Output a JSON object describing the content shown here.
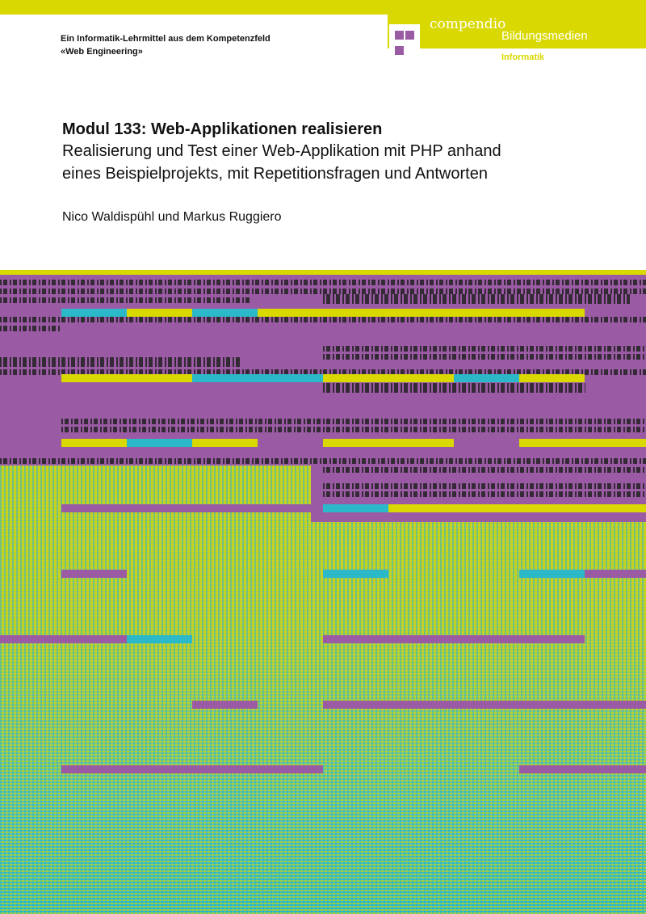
{
  "header": {
    "line1": "Ein Informatik-Lehrmittel aus dem Kompetenzfeld",
    "line2": "«Web Engineering»"
  },
  "publisher": {
    "name": "compendio",
    "tagline": "Bildungsmedien",
    "subject": "Informatik"
  },
  "book": {
    "title": "Modul 133: Web-Applikationen realisieren",
    "subtitle_line1": "Realisierung und Test einer Web-Applikation mit PHP anhand",
    "subtitle_line2": "eines Beispielprojekts, mit Repetitionsfragen und Antworten",
    "authors": "Nico Waldispühl und Markus Ruggiero"
  },
  "colors": {
    "yellow": "#d9d800",
    "purple": "#9b5ba4",
    "cyan": "#2bb8c8"
  }
}
